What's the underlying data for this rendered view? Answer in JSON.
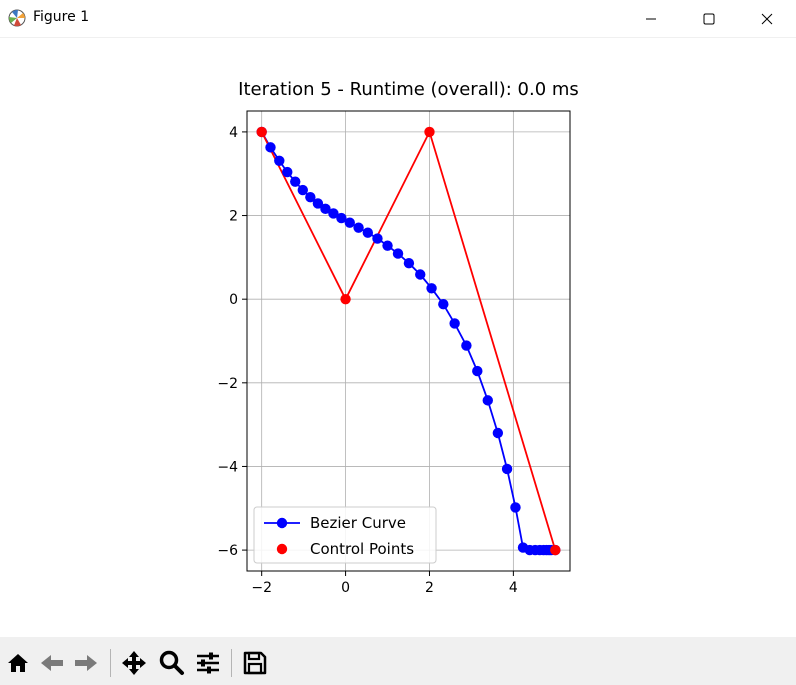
{
  "window": {
    "title": "Figure 1",
    "app_icon": "matplotlib-icon"
  },
  "toolbar": {
    "buttons": [
      "home-icon",
      "back-arrow-icon",
      "forward-arrow-icon",
      "pan-icon",
      "zoom-icon",
      "configure-subplots-icon",
      "save-icon"
    ]
  },
  "colors": {
    "curve": "#0000ff",
    "control": "#ff0000",
    "grid": "#b0b0b0"
  },
  "chart_data": {
    "type": "line",
    "title": "Iteration 5 - Runtime (overall): 0.0 ms",
    "xlabel": "",
    "ylabel": "",
    "xlim": [
      -2.35,
      5.35
    ],
    "ylim": [
      -6.5,
      4.5
    ],
    "xticks": [
      -2,
      0,
      2,
      4
    ],
    "yticks": [
      -6,
      -4,
      -2,
      0,
      2,
      4
    ],
    "xtick_labels": [
      "−2",
      "0",
      "2",
      "4"
    ],
    "ytick_labels": [
      "−6",
      "−4",
      "−2",
      "0",
      "2",
      "4"
    ],
    "grid": true,
    "legend": {
      "placement": "lower-left",
      "entries": [
        "Bezier Curve",
        "Control Points"
      ]
    },
    "series": [
      {
        "name": "Bezier Curve",
        "style": "line-with-markers",
        "color": "#0000ff",
        "x": [
          -2.0,
          -1.79,
          -1.58,
          -1.39,
          -1.2,
          -1.02,
          -0.84,
          -0.66,
          -0.48,
          -0.29,
          -0.1,
          0.1,
          0.31,
          0.53,
          0.76,
          1.0,
          1.25,
          1.51,
          1.78,
          2.05,
          2.33,
          2.6,
          2.88,
          3.14,
          3.39,
          3.63,
          3.85,
          4.05,
          4.23,
          4.39,
          4.52,
          4.63,
          4.72,
          4.79,
          4.85,
          4.9,
          5.0
        ],
        "y": [
          4.0,
          3.63,
          3.31,
          3.04,
          2.81,
          2.61,
          2.44,
          2.29,
          2.16,
          2.05,
          1.94,
          1.83,
          1.71,
          1.59,
          1.45,
          1.28,
          1.09,
          0.86,
          0.59,
          0.26,
          -0.12,
          -0.58,
          -1.11,
          -1.72,
          -2.42,
          -3.2,
          -4.06,
          -4.98,
          -5.94,
          -6.0,
          -6.0,
          -6.0,
          -6.0,
          -6.0,
          -6.0,
          -6.0,
          -6.0
        ]
      },
      {
        "name": "Control Points",
        "style": "markers-with-connecting-line",
        "color": "#ff0000",
        "x": [
          -2,
          0,
          2,
          5
        ],
        "y": [
          4,
          0,
          4,
          -6
        ]
      }
    ]
  }
}
